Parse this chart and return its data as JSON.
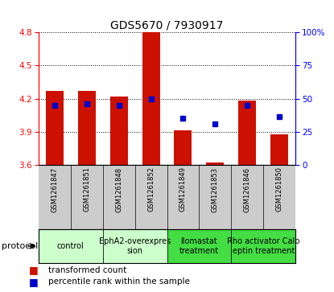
{
  "title": "GDS5670 / 7930917",
  "samples": [
    "GSM1261847",
    "GSM1261851",
    "GSM1261848",
    "GSM1261852",
    "GSM1261849",
    "GSM1261853",
    "GSM1261846",
    "GSM1261850"
  ],
  "bar_tops": [
    4.27,
    4.27,
    4.22,
    4.8,
    3.91,
    3.62,
    4.18,
    3.88
  ],
  "bar_bottom": 3.6,
  "percentile_values": [
    4.14,
    4.15,
    4.14,
    4.2,
    4.02,
    3.97,
    4.14,
    4.04
  ],
  "ylim_left": [
    3.6,
    4.8
  ],
  "ylim_right": [
    0,
    100
  ],
  "yticks_left": [
    3.6,
    3.9,
    4.2,
    4.5,
    4.8
  ],
  "yticks_right": [
    0,
    25,
    50,
    75,
    100
  ],
  "ytick_labels_right": [
    "0",
    "25",
    "50",
    "75",
    "100%"
  ],
  "bar_color": "#cc1100",
  "dot_color": "#0000cc",
  "bar_width": 0.55,
  "protocol_groups": [
    {
      "label": "control",
      "samples": [
        0,
        1
      ],
      "color": "#ccffcc"
    },
    {
      "label": "EphA2-overexpres\nsion",
      "samples": [
        2,
        3
      ],
      "color": "#ccffcc"
    },
    {
      "label": "llomastat\ntreatment",
      "samples": [
        4,
        5
      ],
      "color": "#44dd44"
    },
    {
      "label": "Rho activator Calp\neptin treatment",
      "samples": [
        6,
        7
      ],
      "color": "#44dd44"
    }
  ],
  "legend_items": [
    {
      "label": "transformed count",
      "color": "#cc1100"
    },
    {
      "label": "percentile rank within the sample",
      "color": "#0000cc"
    }
  ],
  "protocol_label": "protocol",
  "background_color": "#ffffff",
  "tick_label_area_color": "#cccccc",
  "grid_color": "#000000",
  "title_fontsize": 10,
  "axis_fontsize": 7.5,
  "label_fontsize": 6,
  "proto_fontsize": 7
}
